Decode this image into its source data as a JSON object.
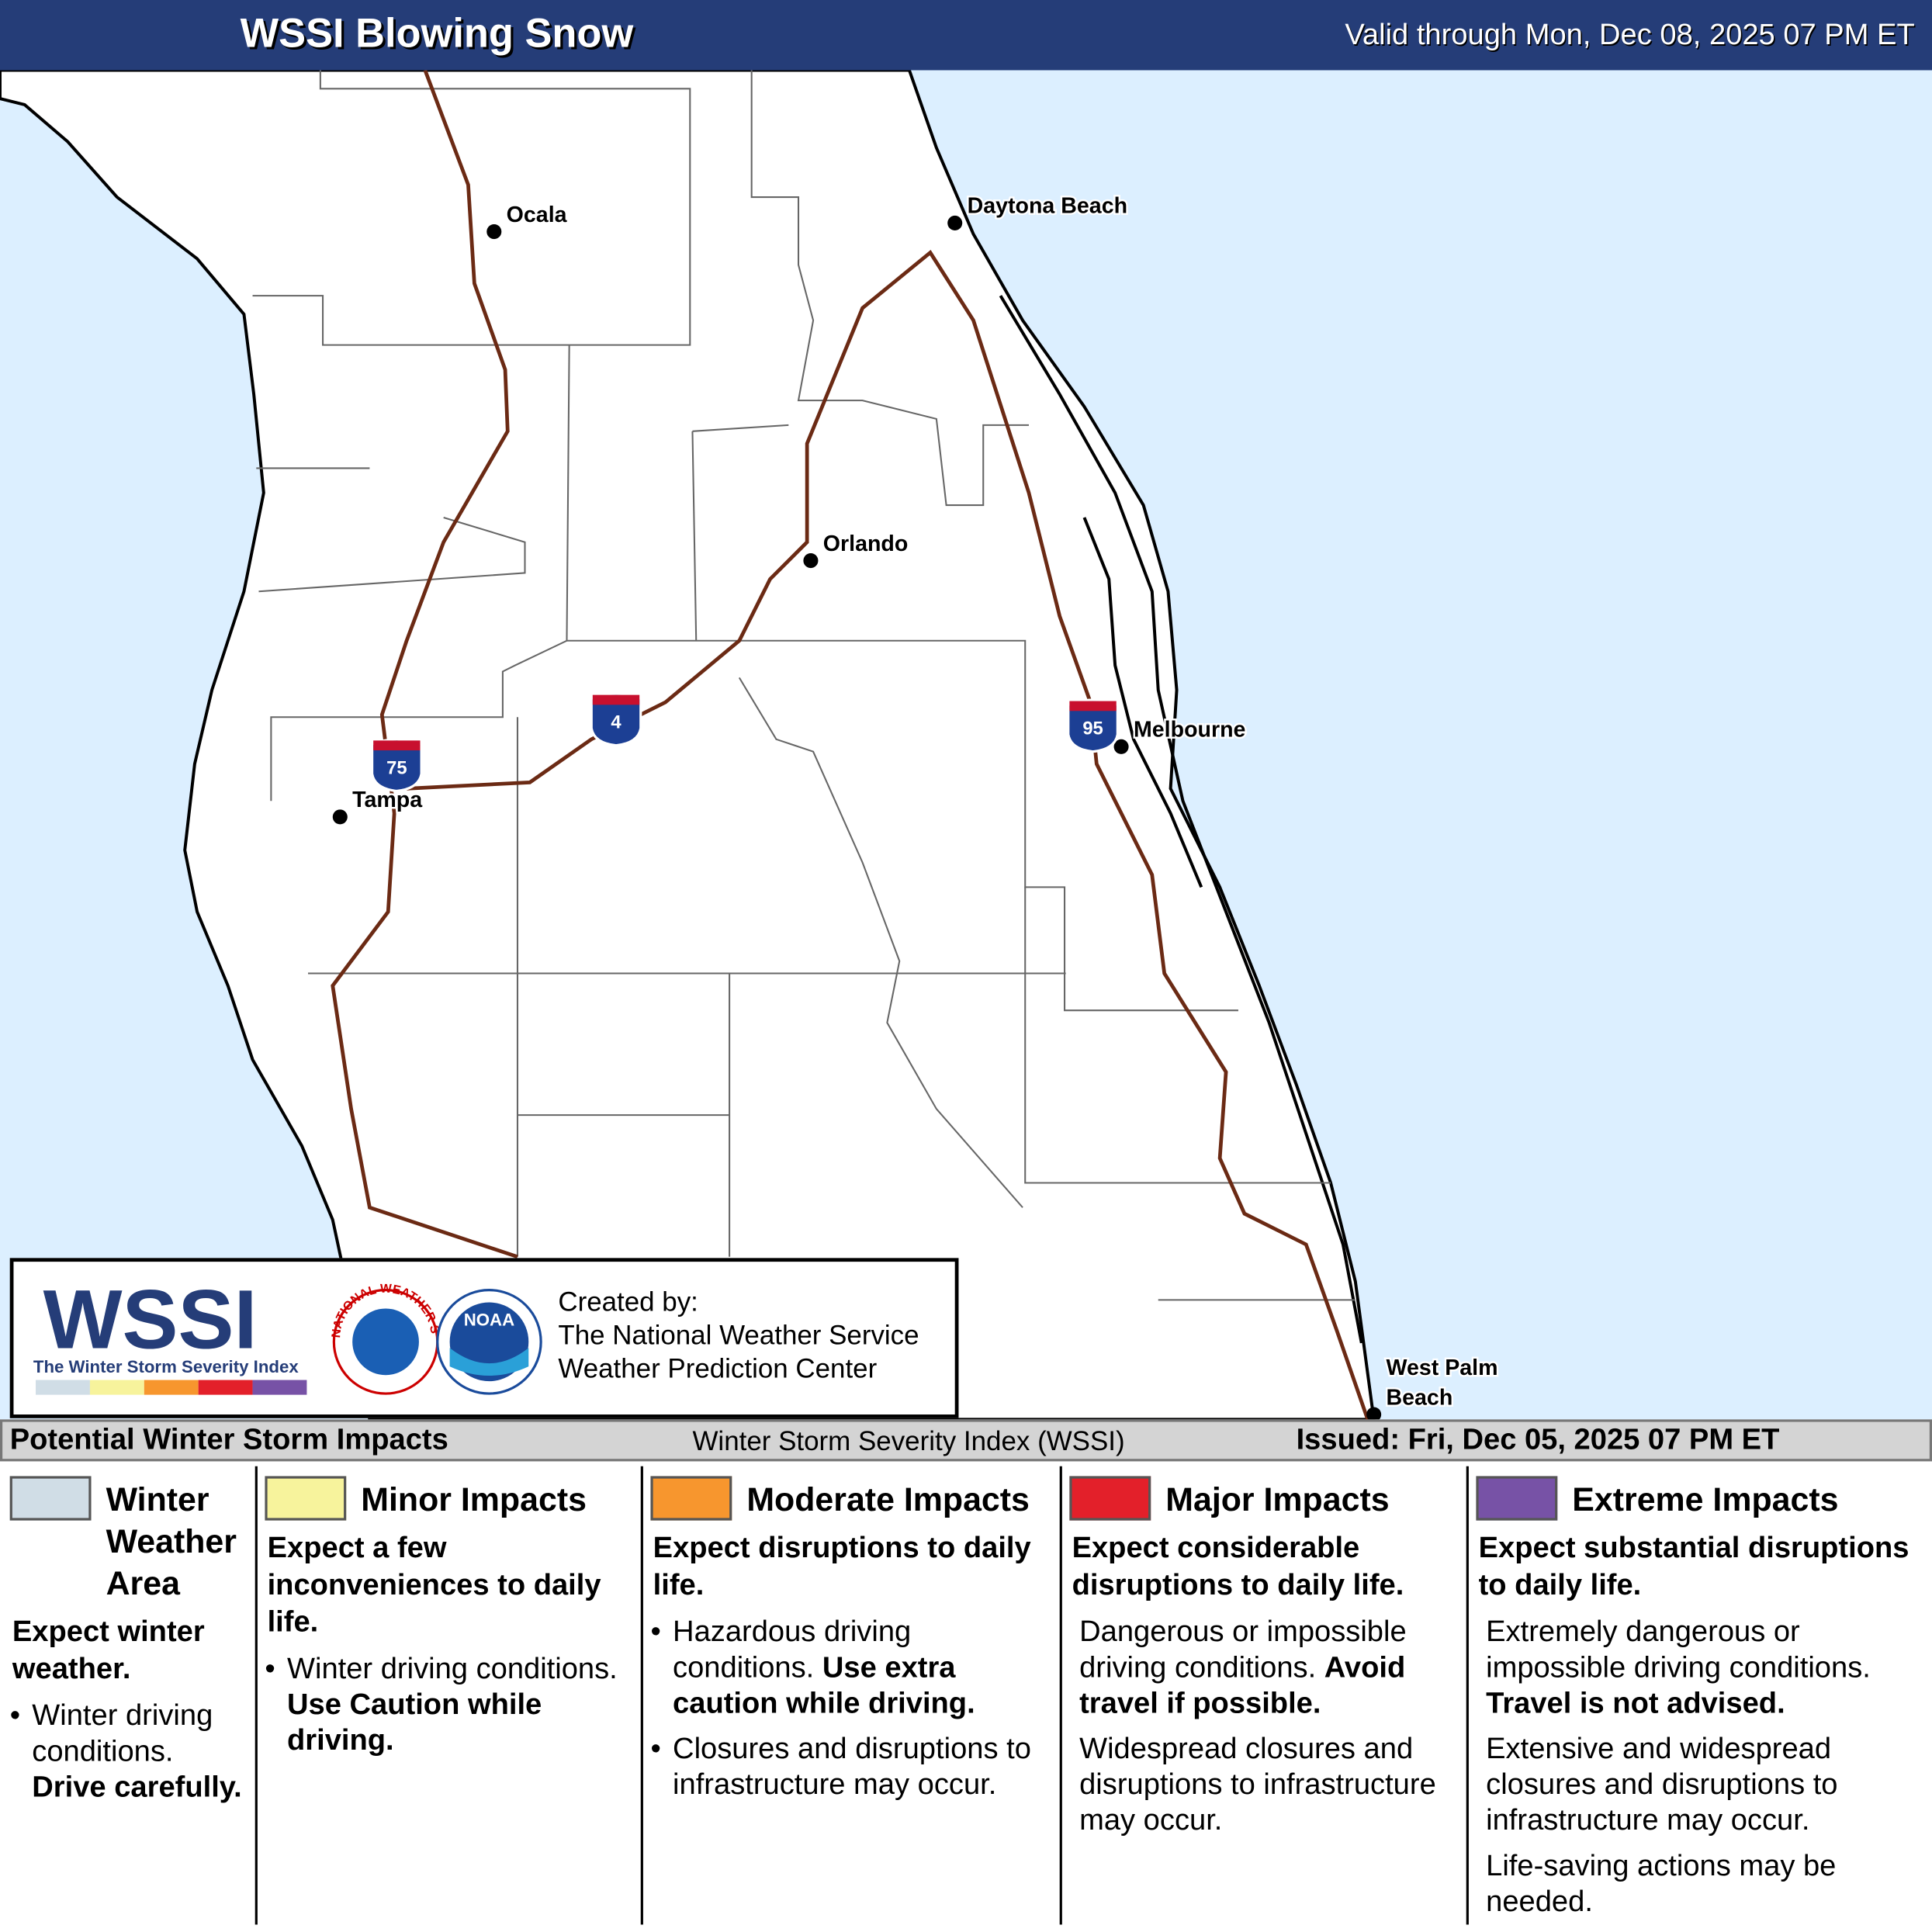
{
  "header": {
    "title": "WSSI Blowing Snow",
    "valid": "Valid through Mon, Dec 08, 2025 07 PM ET"
  },
  "map": {
    "cities": [
      {
        "name": [
          "Ocala"
        ]
      },
      {
        "name": [
          "Daytona Beach"
        ]
      },
      {
        "name": [
          "Orlando"
        ]
      },
      {
        "name": [
          "Melbourne"
        ]
      },
      {
        "name": [
          "Tampa"
        ]
      },
      {
        "name": [
          "West Palm",
          "Beach"
        ]
      }
    ],
    "highways": [
      "75",
      "4",
      "95"
    ]
  },
  "credits": {
    "logo_text": "WSSI",
    "logo_subtitle": "The Winter Storm Severity Index",
    "nws_ring": "NATIONAL WEATHER SERVICE",
    "noaa": "NOAA",
    "created_by": "Created by:",
    "org1": "The National Weather Service",
    "org2": "Weather Prediction Center"
  },
  "legend": {
    "title": "Potential Winter Storm Impacts",
    "subtitle": "Winter Storm Severity Index (WSSI)",
    "issued": "Issued: Fri, Dec 05, 2025 07 PM ET",
    "levels": [
      {
        "name": "Winter Weather Area",
        "color": "#d0dde6",
        "summary": "Expect winter weather.",
        "bullets": true,
        "items": [
          {
            "text": "Winter driving conditions.",
            "bold": "Drive carefully."
          }
        ]
      },
      {
        "name": "Minor Impacts",
        "color": "#f7f39c",
        "summary": "Expect a few inconveniences to daily life.",
        "bullets": true,
        "items": [
          {
            "text": "Winter driving conditions.",
            "bold": "Use Caution while driving."
          }
        ]
      },
      {
        "name": "Moderate Impacts",
        "color": "#f7962e",
        "summary": "Expect disruptions to daily life.",
        "bullets": true,
        "items": [
          {
            "text": "Hazardous driving conditions.",
            "bold": "Use extra caution while driving."
          },
          {
            "text": "Closures and disruptions to infrastructure may occur."
          }
        ]
      },
      {
        "name": "Major Impacts",
        "color": "#e3202a",
        "summary": "Expect considerable disruptions to daily life.",
        "bullets": false,
        "items": [
          {
            "text": "Dangerous or impossible driving conditions.",
            "bold": "Avoid travel if possible."
          },
          {
            "text": "Widespread closures and disruptions to infrastructure may occur."
          }
        ]
      },
      {
        "name": "Extreme Impacts",
        "color": "#7752a6",
        "summary": "Expect substantial disruptions to daily life.",
        "bullets": false,
        "items": [
          {
            "text": "Extremely dangerous or impossible driving conditions.",
            "bold": "Travel is not advised."
          },
          {
            "text": "Extensive and widespread closures and disruptions to infrastructure may occur."
          },
          {
            "text": "Life-saving actions may be needed."
          }
        ]
      }
    ]
  }
}
